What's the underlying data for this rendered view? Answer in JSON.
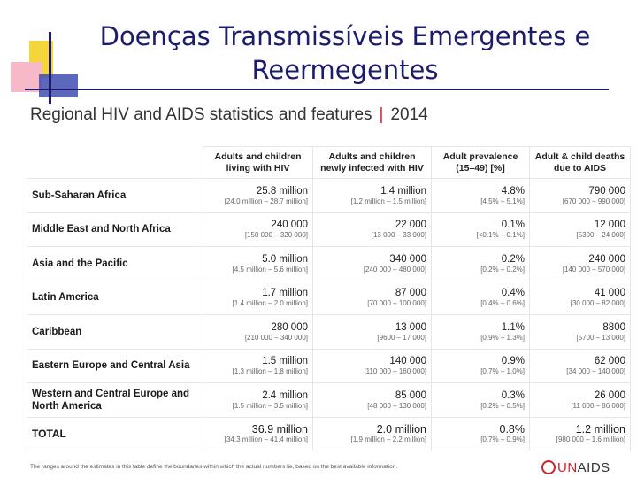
{
  "title": {
    "line1": "Doenças Transmissíveis Emergentes e",
    "line2": "Reermegentes"
  },
  "table_header": {
    "text": "Regional HIV and AIDS statistics and features",
    "separator": "|",
    "year": "2014"
  },
  "columns": [
    "Adults and children living with HIV",
    "Adults and children newly infected with HIV",
    "Adult prevalence (15–49) [%]",
    "Adult & child deaths due to AIDS"
  ],
  "rows": [
    {
      "region": "Sub-Saharan Africa",
      "cells": [
        {
          "v": "25.8 million",
          "r": "[24.0 million – 28.7 million]"
        },
        {
          "v": "1.4 million",
          "r": "[1.2 million – 1.5 million]"
        },
        {
          "v": "4.8%",
          "r": "[4.5% – 5.1%]"
        },
        {
          "v": "790 000",
          "r": "[670 000 – 990 000]"
        }
      ]
    },
    {
      "region": "Middle East and North Africa",
      "cells": [
        {
          "v": "240 000",
          "r": "[150 000 – 320 000]"
        },
        {
          "v": "22 000",
          "r": "[13 000 – 33 000]"
        },
        {
          "v": "0.1%",
          "r": "[<0.1% – 0.1%]"
        },
        {
          "v": "12 000",
          "r": "[5300 – 24 000]"
        }
      ]
    },
    {
      "region": "Asia and the Pacific",
      "cells": [
        {
          "v": "5.0 million",
          "r": "[4.5 million – 5.6 million]"
        },
        {
          "v": "340 000",
          "r": "[240 000 – 480 000]"
        },
        {
          "v": "0.2%",
          "r": "[0.2% – 0.2%]"
        },
        {
          "v": "240 000",
          "r": "[140 000 – 570 000]"
        }
      ]
    },
    {
      "region": "Latin America",
      "cells": [
        {
          "v": "1.7 million",
          "r": "[1.4 million – 2.0 million]"
        },
        {
          "v": "87 000",
          "r": "[70 000 – 100 000]"
        },
        {
          "v": "0.4%",
          "r": "[0.4% – 0.6%]"
        },
        {
          "v": "41 000",
          "r": "[30 000 – 82 000]"
        }
      ]
    },
    {
      "region": "Caribbean",
      "cells": [
        {
          "v": "280 000",
          "r": "[210 000 – 340 000]"
        },
        {
          "v": "13 000",
          "r": "[9600 – 17 000]"
        },
        {
          "v": "1.1%",
          "r": "[0.9% – 1.3%]"
        },
        {
          "v": "8800",
          "r": "[5700 – 13 000]"
        }
      ]
    },
    {
      "region": "Eastern Europe and Central Asia",
      "cells": [
        {
          "v": "1.5 million",
          "r": "[1.3 million – 1.8 million]"
        },
        {
          "v": "140 000",
          "r": "[110 000 – 160 000]"
        },
        {
          "v": "0.9%",
          "r": "[0.7% – 1.0%]"
        },
        {
          "v": "62 000",
          "r": "[34 000 – 140 000]"
        }
      ]
    },
    {
      "region": "Western and Central Europe and North America",
      "cells": [
        {
          "v": "2.4 million",
          "r": "[1.5 million – 3.5 million]"
        },
        {
          "v": "85 000",
          "r": "[48 000 – 130 000]"
        },
        {
          "v": "0.3%",
          "r": "[0.2% – 0.5%]"
        },
        {
          "v": "26 000",
          "r": "[11 000 – 86 000]"
        }
      ]
    },
    {
      "region": "TOTAL",
      "cells": [
        {
          "v": "36.9 million",
          "r": "[34.3 million – 41.4 million]"
        },
        {
          "v": "2.0 million",
          "r": "[1.9 million – 2.2 million]"
        },
        {
          "v": "0.8%",
          "r": "[0.7% – 0.9%]"
        },
        {
          "v": "1.2 million",
          "r": "[980 000 – 1.6 million]"
        }
      ]
    }
  ],
  "footnote": "The ranges around the estimates in this table define the boundaries within which the actual numbers lie, based on the best available information.",
  "logo": {
    "prefix": "UN",
    "suffix": "AIDS"
  },
  "colors": {
    "title": "#1c1c6e",
    "accent": "#d0222b",
    "deco_yellow": "#f5d63a",
    "deco_pink": "#f7b8c8",
    "deco_blue": "#3f4eb0"
  },
  "icons": {
    "logo": "unaids-ribbon-icon"
  }
}
